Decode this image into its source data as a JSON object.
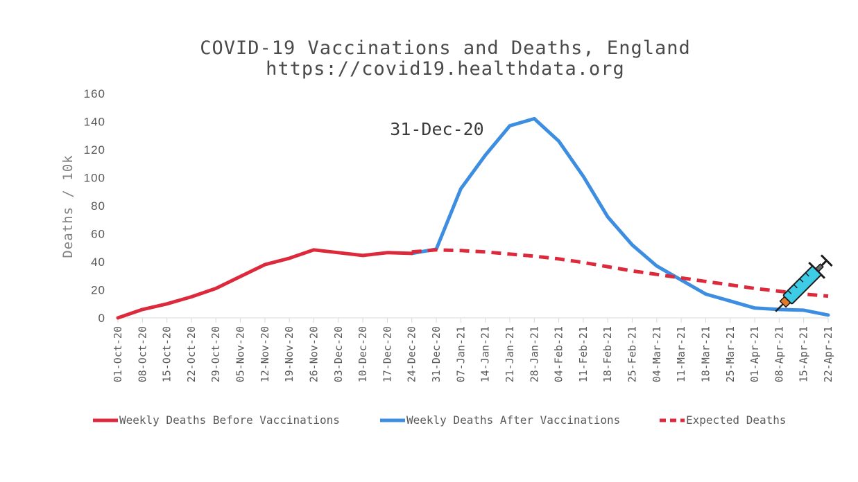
{
  "chart_data": {
    "type": "line",
    "title": "COVID-19 Vaccinations and Deaths, England",
    "subtitle": "https://covid19.healthdata.org",
    "ylabel": "Deaths / 10k",
    "xlabel": "",
    "ylim": [
      0,
      160
    ],
    "yticks": [
      "0",
      "20",
      "40",
      "60",
      "80",
      "100",
      "120",
      "140",
      "160"
    ],
    "categories": [
      "01-Oct-20",
      "08-Oct-20",
      "15-Oct-20",
      "22-Oct-20",
      "29-Oct-20",
      "05-Nov-20",
      "12-Nov-20",
      "19-Nov-20",
      "26-Nov-20",
      "03-Dec-20",
      "10-Dec-20",
      "17-Dec-20",
      "24-Dec-20",
      "31-Dec-20",
      "07-Jan-21",
      "14-Jan-21",
      "21-Jan-21",
      "28-Jan-21",
      "04-Feb-21",
      "11-Feb-21",
      "18-Feb-21",
      "25-Feb-21",
      "04-Mar-21",
      "11-Mar-21",
      "18-Mar-21",
      "25-Mar-21",
      "01-Apr-21",
      "08-Apr-21",
      "15-Apr-21",
      "22-Apr-21"
    ],
    "series": [
      {
        "name": "Weekly Deaths Before Vaccinations",
        "color": "#dc2a3c",
        "dashed": false,
        "values": [
          0,
          6,
          10,
          15,
          21,
          29.5,
          38,
          42.5,
          48.5,
          46.5,
          44.5,
          46.5,
          46,
          null,
          null,
          null,
          null,
          null,
          null,
          null,
          null,
          null,
          null,
          null,
          null,
          null,
          null,
          null,
          null,
          null
        ]
      },
      {
        "name": "Weekly Deaths After Vaccinations",
        "color": "#3d8ee0",
        "dashed": false,
        "values": [
          null,
          null,
          null,
          null,
          null,
          null,
          null,
          null,
          null,
          null,
          null,
          null,
          46,
          49,
          92,
          116,
          137,
          142,
          126,
          101,
          72,
          52,
          37,
          27,
          17,
          12,
          7,
          6,
          5.5,
          2
        ]
      },
      {
        "name": "Expected Deaths",
        "color": "#dc2a3c",
        "dashed": true,
        "values": [
          null,
          null,
          null,
          null,
          null,
          null,
          null,
          null,
          null,
          null,
          null,
          null,
          47,
          48.5,
          48,
          47,
          45.5,
          44,
          42,
          39.5,
          36.5,
          33.5,
          31,
          28.5,
          26,
          23.5,
          21,
          19,
          17,
          15.5
        ]
      }
    ],
    "annotation": {
      "text": "31-Dec-20",
      "x": "31-Dec-20"
    },
    "legend_position": "bottom",
    "grid": false
  },
  "icons": {
    "vaccine": "syringe-icon"
  }
}
